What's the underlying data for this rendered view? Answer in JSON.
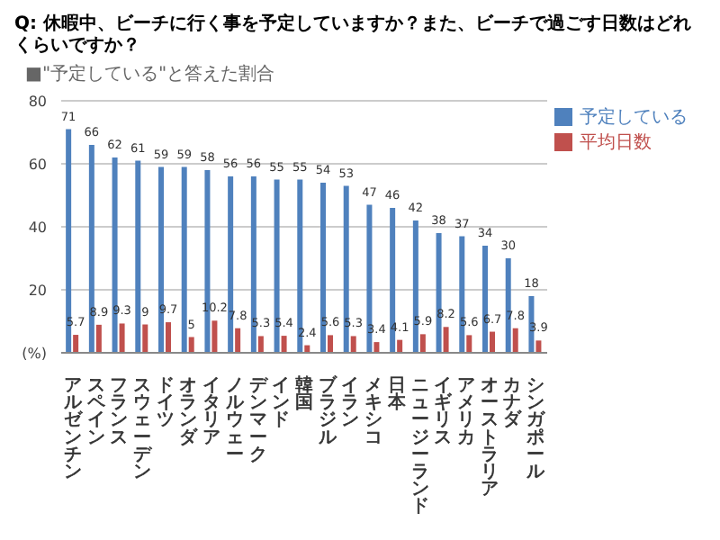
{
  "chart_data": {
    "type": "bar",
    "title": "Q: 休暇中、ビーチに行く事を予定していますか？また、ビーチで過ごす日数はどれくらいですか？",
    "subtitle": "■\"予定している\"と答えた割合",
    "categories": [
      "アルゼンチン",
      "スペイン",
      "フランス",
      "スウェーデン",
      "ドイツ",
      "オランダ",
      "イタリア",
      "ノルウェー",
      "デンマーク",
      "インド",
      "韓国",
      "ブラジル",
      "イラン",
      "メキシコ",
      "日本",
      "ニュージーランド",
      "イギリス",
      "アメリカ",
      "オーストラリア",
      "カナダ",
      "シンガポール"
    ],
    "series": [
      {
        "name": "予定している",
        "color": "#4f81bd",
        "values": [
          71,
          66,
          62,
          61,
          59,
          59,
          58,
          56,
          56,
          55,
          55,
          54,
          53,
          47,
          46,
          42,
          38,
          37,
          34,
          30,
          18
        ]
      },
      {
        "name": "平均日数",
        "color": "#c0504d",
        "values": [
          5.7,
          8.9,
          9.3,
          9,
          9.7,
          5,
          10.2,
          7.8,
          5.3,
          5.4,
          2.4,
          5.6,
          5.3,
          3.4,
          4.1,
          5.9,
          8.2,
          5.6,
          6.7,
          7.8,
          3.9
        ]
      }
    ],
    "ylim": [
      0,
      80
    ],
    "yticks": [
      {
        "value": 0,
        "label": "(%)"
      },
      20,
      40,
      60,
      80
    ],
    "grid": "y",
    "legend": "right",
    "data_labels": true
  }
}
